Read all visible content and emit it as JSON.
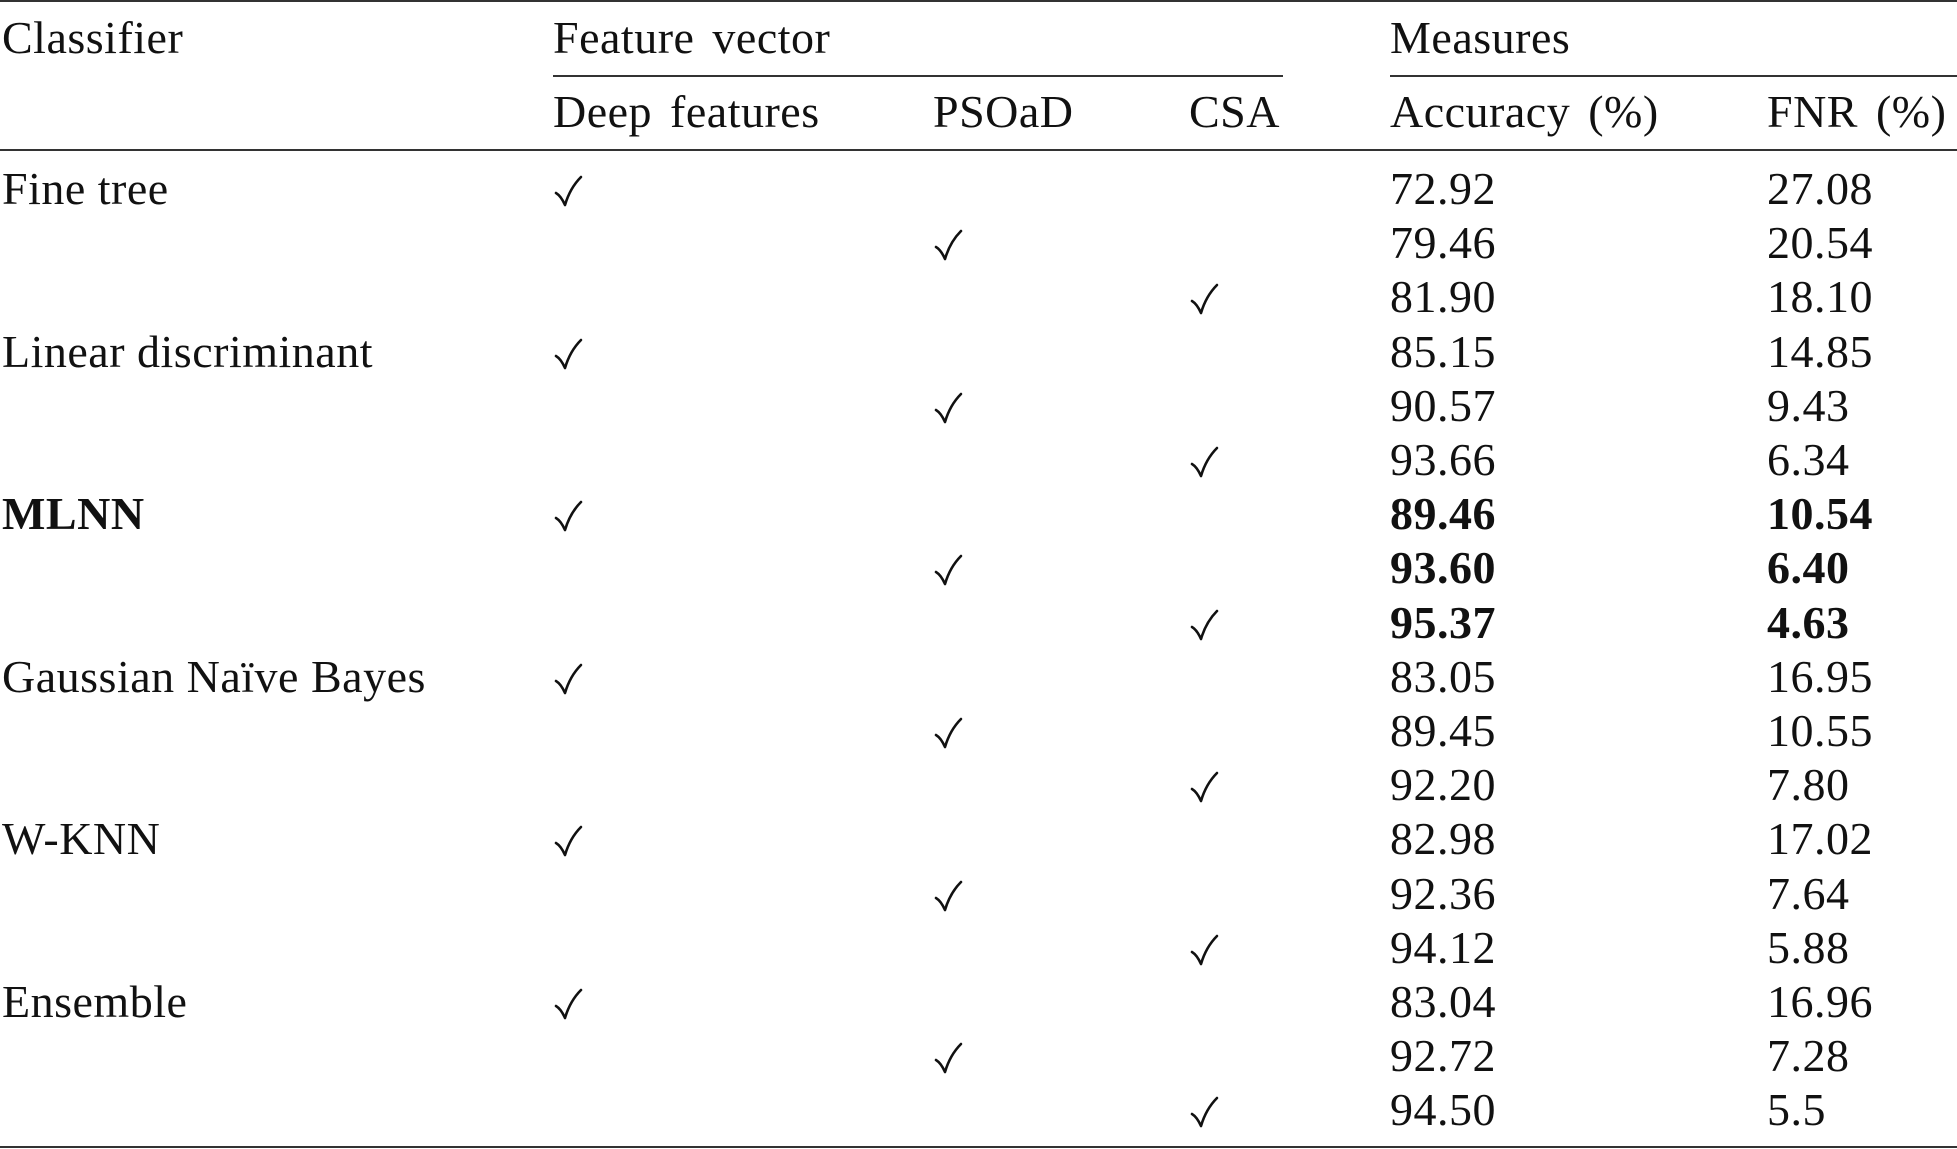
{
  "table": {
    "headers": {
      "classifier": "Classifier",
      "feature_vector": "Feature vector",
      "measures": "Measures",
      "deep_features": "Deep features",
      "psoad": "PSOaD",
      "csa": "CSA",
      "accuracy": "Accuracy (%)",
      "fnr": "FNR (%)"
    },
    "check_symbol": "check-mark-icon",
    "groups": [
      {
        "classifier": "Fine tree",
        "bold": false,
        "rows": [
          {
            "feature": "deep",
            "accuracy": "72.92",
            "fnr": "27.08"
          },
          {
            "feature": "psoad",
            "accuracy": "79.46",
            "fnr": "20.54"
          },
          {
            "feature": "csa",
            "accuracy": "81.90",
            "fnr": "18.10"
          }
        ]
      },
      {
        "classifier": "Linear discriminant",
        "bold": false,
        "rows": [
          {
            "feature": "deep",
            "accuracy": "85.15",
            "fnr": "14.85"
          },
          {
            "feature": "psoad",
            "accuracy": "90.57",
            "fnr": "9.43"
          },
          {
            "feature": "csa",
            "accuracy": "93.66",
            "fnr": "6.34"
          }
        ]
      },
      {
        "classifier": "MLNN",
        "bold": true,
        "rows": [
          {
            "feature": "deep",
            "accuracy": "89.46",
            "fnr": "10.54"
          },
          {
            "feature": "psoad",
            "accuracy": "93.60",
            "fnr": "6.40"
          },
          {
            "feature": "csa",
            "accuracy": "95.37",
            "fnr": "4.63"
          }
        ]
      },
      {
        "classifier": "Gaussian Naïve Bayes",
        "bold": false,
        "rows": [
          {
            "feature": "deep",
            "accuracy": "83.05",
            "fnr": "16.95"
          },
          {
            "feature": "psoad",
            "accuracy": "89.45",
            "fnr": "10.55"
          },
          {
            "feature": "csa",
            "accuracy": "92.20",
            "fnr": "7.80"
          }
        ]
      },
      {
        "classifier": "W-KNN",
        "bold": false,
        "rows": [
          {
            "feature": "deep",
            "accuracy": "82.98",
            "fnr": "17.02"
          },
          {
            "feature": "psoad",
            "accuracy": "92.36",
            "fnr": "7.64"
          },
          {
            "feature": "csa",
            "accuracy": "94.12",
            "fnr": "5.88"
          }
        ]
      },
      {
        "classifier": "Ensemble",
        "bold": false,
        "rows": [
          {
            "feature": "deep",
            "accuracy": "83.04",
            "fnr": "16.96"
          },
          {
            "feature": "psoad",
            "accuracy": "92.72",
            "fnr": "7.28"
          },
          {
            "feature": "csa",
            "accuracy": "94.50",
            "fnr": "5.5"
          }
        ]
      }
    ]
  }
}
